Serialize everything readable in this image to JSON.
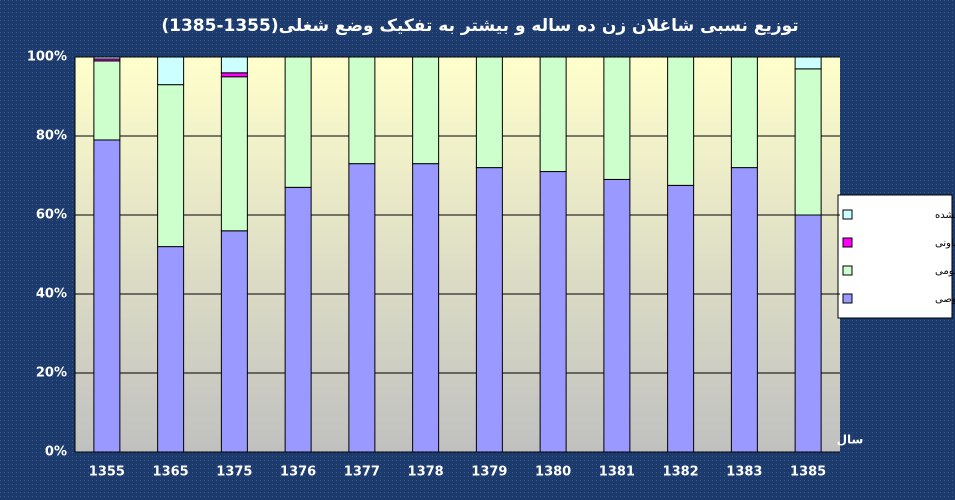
{
  "chart_data": {
    "type": "stacked_bar",
    "title": "توزیع نسبی شاغلان زن ده ساله و بیشتر به تفکیک وضع شغلی(1355-1385)",
    "x_label": "سال",
    "categories": [
      "1355",
      "1365",
      "1375",
      "1376",
      "1377",
      "1378",
      "1379",
      "1380",
      "1381",
      "1382",
      "1383",
      "1385"
    ],
    "series": [
      {
        "name": "بخش خصوصی",
        "color": "#9999ff",
        "values": [
          79,
          52,
          56,
          67,
          73,
          73,
          72,
          71,
          69,
          67.5,
          72,
          60
        ]
      },
      {
        "name": "بخش عمومی",
        "color": "#ccffcc",
        "values": [
          20,
          41,
          39,
          33,
          27,
          27,
          28,
          29,
          31,
          32.5,
          28,
          37
        ]
      },
      {
        "name": "بخش تعاونی",
        "color": "#ff00ff",
        "values": [
          0.5,
          0,
          1,
          0,
          0,
          0,
          0,
          0,
          0,
          0,
          0,
          0
        ]
      },
      {
        "name": "اظهار نشده",
        "color": "#ccffff",
        "values": [
          0.5,
          7,
          4,
          0,
          0,
          0,
          0,
          0,
          0,
          0,
          0,
          3
        ]
      }
    ],
    "ylim": [
      0,
      100
    ],
    "yticks": [
      {
        "value": 0,
        "label": "0%"
      },
      {
        "value": 20,
        "label": "20%"
      },
      {
        "value": 40,
        "label": "40%"
      },
      {
        "value": 60,
        "label": "60%"
      },
      {
        "value": 80,
        "label": "80%"
      },
      {
        "value": 100,
        "label": "100%"
      }
    ],
    "grid": true,
    "legend": "right"
  }
}
